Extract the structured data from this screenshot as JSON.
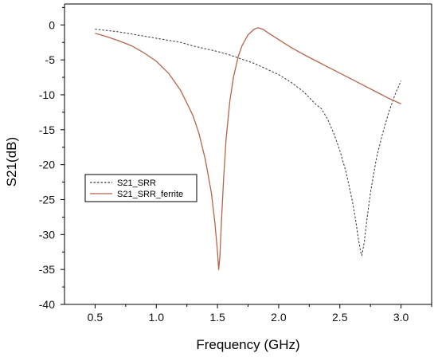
{
  "chart_data": {
    "type": "line",
    "xlabel": "Frequency (GHz)",
    "ylabel": "S21(dB)",
    "xlim": [
      0.25,
      3.25
    ],
    "ylim": [
      -40,
      3
    ],
    "x_ticks": [
      0.5,
      1.0,
      1.5,
      2.0,
      2.5,
      3.0
    ],
    "x_tick_labels": [
      "0.5",
      "1.0",
      "1.5",
      "2.0",
      "2.5",
      "3.0"
    ],
    "y_ticks": [
      0,
      -5,
      -10,
      -15,
      -20,
      -25,
      -30,
      -35,
      -40
    ],
    "y_tick_labels": [
      "0",
      "-5",
      "-10",
      "-15",
      "-20",
      "-25",
      "-30",
      "-35",
      "-40"
    ],
    "grid": false,
    "legend_position": "center-left",
    "series": [
      {
        "name": "S21_SRR",
        "color": "#333333",
        "dash": "dashed",
        "x": [
          0.5,
          0.6,
          0.7,
          0.8,
          0.9,
          1.0,
          1.1,
          1.2,
          1.3,
          1.4,
          1.5,
          1.6,
          1.7,
          1.8,
          1.9,
          2.0,
          2.1,
          2.2,
          2.3,
          2.35,
          2.4,
          2.45,
          2.5,
          2.55,
          2.6,
          2.63,
          2.65,
          2.67,
          2.68,
          2.7,
          2.72,
          2.75,
          2.8,
          2.85,
          2.9,
          2.95,
          3.0
        ],
        "y": [
          -0.6,
          -0.8,
          -1.0,
          -1.3,
          -1.6,
          -1.9,
          -2.2,
          -2.5,
          -3.0,
          -3.4,
          -3.8,
          -4.3,
          -4.9,
          -5.5,
          -6.3,
          -7.1,
          -8.2,
          -9.5,
          -11.3,
          -12.0,
          -13.5,
          -15.5,
          -18.0,
          -21.0,
          -25.0,
          -28.0,
          -30.5,
          -32.5,
          -33.0,
          -31.0,
          -28.0,
          -24.0,
          -19.0,
          -15.5,
          -12.5,
          -10.0,
          -8.0
        ]
      },
      {
        "name": "S21_SRR_ferrite",
        "color": "#b5654a",
        "dash": "solid",
        "x": [
          0.5,
          0.6,
          0.7,
          0.8,
          0.9,
          1.0,
          1.1,
          1.2,
          1.3,
          1.35,
          1.4,
          1.45,
          1.48,
          1.5,
          1.51,
          1.52,
          1.53,
          1.55,
          1.57,
          1.6,
          1.63,
          1.67,
          1.7,
          1.75,
          1.8,
          1.83,
          1.87,
          1.92,
          2.0,
          2.1,
          2.2,
          2.3,
          2.4,
          2.5,
          2.6,
          2.7,
          2.8,
          2.9,
          3.0
        ],
        "y": [
          -1.2,
          -1.7,
          -2.3,
          -3.0,
          -4.0,
          -5.2,
          -6.9,
          -9.4,
          -13.0,
          -15.6,
          -19.2,
          -24.0,
          -28.5,
          -32.5,
          -35.0,
          -33.0,
          -29.0,
          -22.0,
          -16.5,
          -11.0,
          -7.5,
          -4.5,
          -3.0,
          -1.4,
          -0.6,
          -0.4,
          -0.6,
          -1.2,
          -2.1,
          -3.2,
          -4.2,
          -5.1,
          -6.0,
          -6.9,
          -7.8,
          -8.7,
          -9.6,
          -10.5,
          -11.3
        ]
      }
    ]
  }
}
